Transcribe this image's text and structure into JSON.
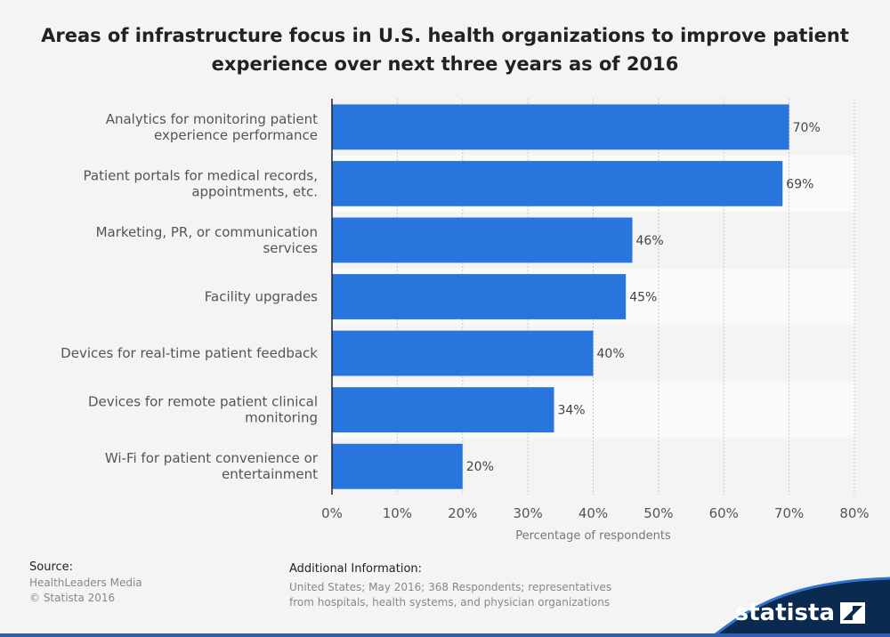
{
  "title": "Areas of infrastructure focus in U.S. health organizations to improve patient experience over next three years as of 2016",
  "chart_data": {
    "type": "bar",
    "orientation": "horizontal",
    "categories": [
      [
        "Analytics for monitoring patient",
        "experience performance"
      ],
      [
        "Patient portals for medical records,",
        "appointments, etc."
      ],
      [
        "Marketing, PR, or communication",
        "services"
      ],
      [
        "Facility upgrades"
      ],
      [
        "Devices for real-time patient feedback"
      ],
      [
        "Devices for remote patient clinical",
        "monitoring"
      ],
      [
        "Wi-Fi for patient convenience or",
        "entertainment"
      ]
    ],
    "values": [
      70,
      69,
      46,
      45,
      40,
      34,
      20
    ],
    "value_labels": [
      "70%",
      "69%",
      "46%",
      "45%",
      "40%",
      "34%",
      "20%"
    ],
    "xlim": [
      0,
      80
    ],
    "xticks": [
      0,
      10,
      20,
      30,
      40,
      50,
      60,
      70,
      80
    ],
    "xtick_labels": [
      "0%",
      "10%",
      "20%",
      "30%",
      "40%",
      "50%",
      "60%",
      "70%",
      "80%"
    ],
    "xlabel": "Percentage of respondents",
    "bar_color": "#2876dd",
    "grid": true
  },
  "footer": {
    "source_heading": "Source:",
    "source_lines": [
      "HealthLeaders Media",
      "© Statista 2016"
    ],
    "info_heading": "Additional Information:",
    "info_lines": [
      "United States; May 2016; 368 Respondents; representatives",
      "from hospitals, health systems, and physician organizations"
    ]
  },
  "brand": {
    "name": "statista",
    "accent": "#0b2a4f"
  }
}
